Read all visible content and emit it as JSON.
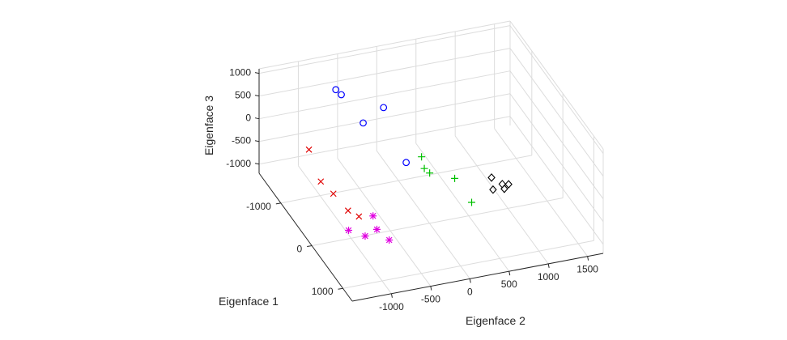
{
  "chart_data": {
    "type": "scatter",
    "title": "",
    "xlabel": "Eigenface 1",
    "ylabel": "Eigenface 2",
    "zlabel": "Eigenface 3",
    "xlim": [
      -1700,
      1300
    ],
    "ylim": [
      -1500,
      1700
    ],
    "zlim": [
      -1200,
      1100
    ],
    "grid": true,
    "x_ticks": [
      "-1000",
      "0",
      "1000"
    ],
    "y_ticks": [
      "-1000",
      "-500",
      "0",
      "500",
      "1000",
      "1500"
    ],
    "z_ticks": [
      "1000",
      "500",
      "0",
      "-500",
      "-1000"
    ],
    "series": [
      {
        "marker": "o",
        "color": "#0000ff",
        "points": [
          [
            -1250,
            -700,
            800
          ],
          [
            -1200,
            -650,
            720
          ],
          [
            -900,
            -230,
            580
          ],
          [
            -1000,
            -450,
            220
          ],
          [
            -550,
            -80,
            -350
          ]
        ]
      },
      {
        "marker": "x",
        "color": "#e00000",
        "points": [
          [
            -700,
            -1260,
            180
          ],
          [
            -520,
            -1180,
            -380
          ],
          [
            -520,
            -1020,
            -700
          ],
          [
            -300,
            -920,
            -900
          ],
          [
            -100,
            -860,
            -860
          ]
        ]
      },
      {
        "marker": "*",
        "color": "#e000e0",
        "points": [
          [
            -80,
            -1000,
            -1100
          ],
          [
            0,
            -720,
            -800
          ],
          [
            200,
            -750,
            -900
          ],
          [
            150,
            -880,
            -1050
          ],
          [
            420,
            -680,
            -950
          ]
        ]
      },
      {
        "marker": "+",
        "color": "#00c000",
        "points": [
          [
            -560,
            120,
            -300
          ],
          [
            -420,
            100,
            -420
          ],
          [
            -400,
            160,
            -520
          ],
          [
            -200,
            400,
            -530
          ],
          [
            220,
            450,
            -680
          ]
        ]
      },
      {
        "marker": "diamond",
        "color": "#000000",
        "points": [
          [
            -100,
            830,
            -560
          ],
          [
            50,
            790,
            -670
          ],
          [
            20,
            920,
            -620
          ],
          [
            60,
            930,
            -690
          ],
          [
            20,
            1000,
            -650
          ]
        ]
      }
    ]
  }
}
